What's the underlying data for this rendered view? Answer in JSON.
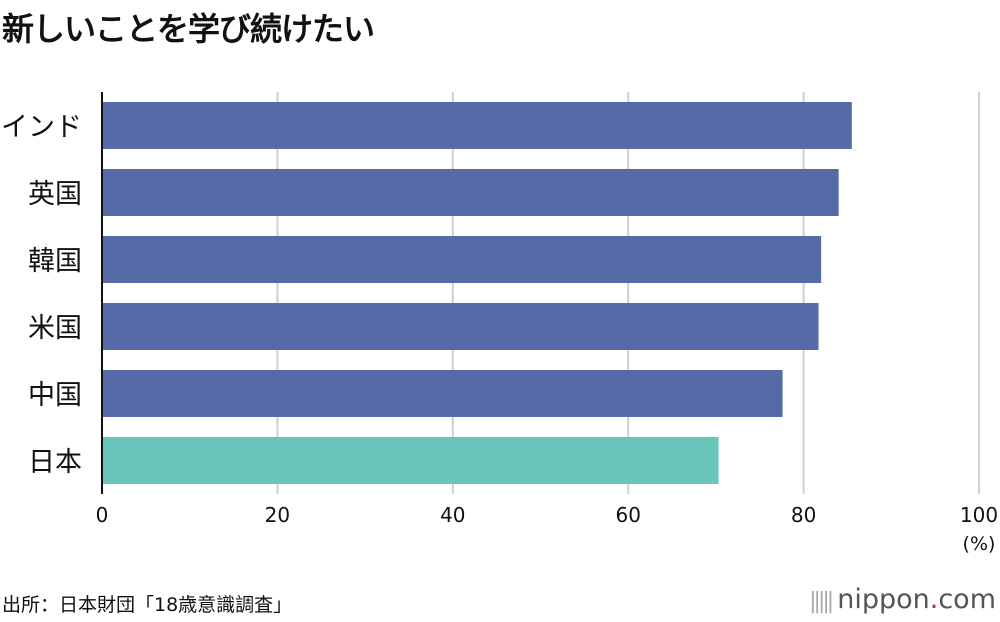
{
  "chart_data": {
    "type": "bar",
    "orientation": "horizontal",
    "title": "新しいことを学び続けたい",
    "categories": [
      "インド",
      "英国",
      "韓国",
      "米国",
      "中国",
      "日本"
    ],
    "values": [
      85.5,
      84.0,
      82.0,
      81.7,
      77.6,
      70.3
    ],
    "colors": [
      "#556aa7",
      "#556aa7",
      "#556aa7",
      "#556aa7",
      "#556aa7",
      "#6ac6bb"
    ],
    "xlim": [
      0,
      100
    ],
    "xticks": [
      0,
      20,
      40,
      60,
      80,
      100
    ],
    "xunit": "(%)",
    "grid": true,
    "source": "出所：日本財団「18歳意識調査」",
    "logo": "nippon.com"
  }
}
